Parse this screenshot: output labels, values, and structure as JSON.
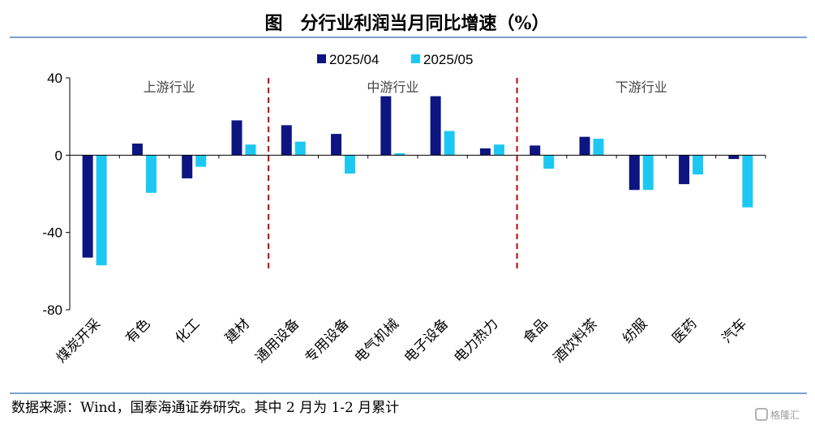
{
  "title": "图　分行业利润当月同比增速（%）",
  "source": "数据来源：Wind，国泰海通证券研究。其中 2 月为 1-2 月累计",
  "watermark": "格隆汇",
  "colors": {
    "series_0": "#0d1580",
    "series_1": "#1cc8f2",
    "divider": "#c00000",
    "rule": "#4f81bd"
  },
  "chart_data": {
    "type": "bar",
    "title": "分行业利润当月同比增速（%）",
    "xlabel": "",
    "ylabel": "",
    "ylim": [
      -80,
      40
    ],
    "yticks": [
      40,
      0,
      -40,
      -80
    ],
    "grid": false,
    "legend_position": "top-center",
    "categories": [
      "煤炭开采",
      "有色",
      "化工",
      "建材",
      "通用设备",
      "专用设备",
      "电气机械",
      "电子设备",
      "电力热力",
      "食品",
      "酒饮料茶",
      "纺服",
      "医药",
      "汽车"
    ],
    "series": [
      {
        "name": "2025/04",
        "values": [
          -53,
          6,
          -12,
          18,
          15.5,
          11,
          30.5,
          30.5,
          3.5,
          5,
          9.5,
          -18,
          -15,
          -2
        ]
      },
      {
        "name": "2025/05",
        "values": [
          -57,
          -19.5,
          -6,
          5.5,
          7,
          -9.5,
          1,
          12.5,
          5.5,
          -7,
          8.5,
          -18,
          -10,
          -27
        ]
      }
    ],
    "segments": [
      {
        "label": "上游行业",
        "start": 0,
        "end": 3
      },
      {
        "label": "中游行业",
        "start": 4,
        "end": 8
      },
      {
        "label": "下游行业",
        "start": 9,
        "end": 13
      }
    ]
  }
}
